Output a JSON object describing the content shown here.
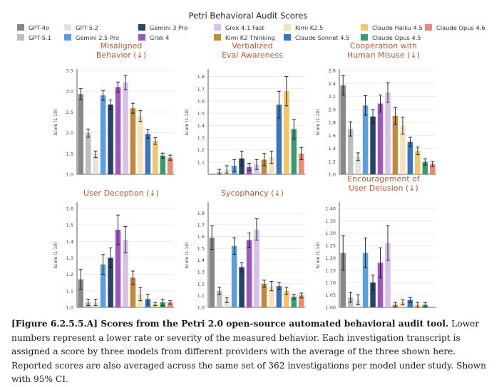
{
  "figure_title": "Petri Behavioral Audit Scores",
  "legend": [
    {
      "name": "GPT-4o",
      "color": "#888888"
    },
    {
      "name": "GPT-5.1",
      "color": "#bdbdbd"
    },
    {
      "name": "GPT-5.2",
      "color": "#e3e3d8"
    },
    {
      "name": "Gemini 2.5 Pro",
      "color": "#5b9ee0"
    },
    {
      "name": "Gemini 3 Pro",
      "color": "#27436b"
    },
    {
      "name": "Grok 4",
      "color": "#9b59c0"
    },
    {
      "name": "Grok 4.1 Fast",
      "color": "#d7c0ea"
    },
    {
      "name": "Kimi K2 Thinking",
      "color": "#c08a3e"
    },
    {
      "name": "Kimi K2.5",
      "color": "#f4e2bd"
    },
    {
      "name": "Claude Sonnet 4.5",
      "color": "#3a76bd"
    },
    {
      "name": "Claude Haiku 4.5",
      "color": "#f4c36a"
    },
    {
      "name": "Claude Opus 4.5",
      "color": "#3b9a72"
    },
    {
      "name": "Claude Opus 4.6",
      "color": "#e98b73"
    }
  ],
  "chart_data": [
    {
      "type": "bar",
      "title": "Misaligned\nBehavior (↓)",
      "ylabel": "Score (1-10)",
      "ylim": [
        1.0,
        3.5
      ],
      "yticks": [
        "1.0",
        "1.5",
        "2.0",
        "2.5",
        "3.0",
        "3.5"
      ],
      "categories": [
        "GPT-4o",
        "GPT-5.1",
        "GPT-5.2",
        "Gemini 2.5 Pro",
        "Gemini 3 Pro",
        "Grok 4",
        "Grok 4.1 Fast",
        "Kimi K2 Thinking",
        "Kimi K2.5",
        "Claude Sonnet 4.5",
        "Claude Haiku 4.5",
        "Claude Opus 4.5",
        "Claude Opus 4.6"
      ],
      "values": [
        2.93,
        1.99,
        1.48,
        2.9,
        2.68,
        3.1,
        3.21,
        2.59,
        2.4,
        1.97,
        1.8,
        1.45,
        1.4
      ],
      "ci": [
        0.13,
        0.1,
        0.08,
        0.12,
        0.11,
        0.12,
        0.17,
        0.12,
        0.13,
        0.1,
        0.08,
        0.06,
        0.06
      ]
    },
    {
      "type": "bar",
      "title": "Verbalized\nEval Awareness",
      "ylabel": "Score (1-10)",
      "ylim": [
        1.0,
        1.85
      ],
      "yticks": [
        "1.1",
        "1.2",
        "1.3",
        "1.4",
        "1.5",
        "1.6",
        "1.7",
        "1.8"
      ],
      "categories": [
        "GPT-4o",
        "GPT-5.1",
        "GPT-5.2",
        "Gemini 2.5 Pro",
        "Gemini 3 Pro",
        "Grok 4",
        "Grok 4.1 Fast",
        "Kimi K2 Thinking",
        "Kimi K2.5",
        "Claude Sonnet 4.5",
        "Claude Haiku 4.5",
        "Claude Opus 4.5",
        "Claude Opus 4.6"
      ],
      "values": [
        1.0,
        1.02,
        1.04,
        1.07,
        1.13,
        1.06,
        1.08,
        1.12,
        1.14,
        1.57,
        1.68,
        1.37,
        1.17
      ],
      "ci": [
        0.0,
        0.02,
        0.03,
        0.05,
        0.06,
        0.03,
        0.04,
        0.05,
        0.05,
        0.11,
        0.12,
        0.08,
        0.05
      ]
    },
    {
      "type": "bar",
      "title": "Cooperation with\nHuman Misuse (↓)",
      "ylabel": "Score (1-10)",
      "ylim": [
        1.0,
        2.6
      ],
      "yticks": [
        "1.0",
        "1.2",
        "1.4",
        "1.6",
        "1.8",
        "2.0",
        "2.2",
        "2.4",
        "2.6"
      ],
      "categories": [
        "GPT-4o",
        "GPT-5.1",
        "GPT-5.2",
        "Gemini 2.5 Pro",
        "Gemini 3 Pro",
        "Grok 4",
        "Grok 4.1 Fast",
        "Kimi K2 Thinking",
        "Kimi K2.5",
        "Claude Sonnet 4.5",
        "Claude Haiku 4.5",
        "Claude Opus 4.5",
        "Claude Opus 4.6"
      ],
      "values": [
        2.37,
        1.7,
        1.27,
        2.06,
        1.89,
        2.09,
        2.26,
        1.9,
        1.75,
        1.5,
        1.36,
        1.19,
        1.16
      ],
      "ci": [
        0.15,
        0.11,
        0.06,
        0.15,
        0.11,
        0.13,
        0.15,
        0.13,
        0.13,
        0.07,
        0.06,
        0.05,
        0.04
      ]
    },
    {
      "type": "bar",
      "title": "User Deception (↓)",
      "ylabel": "Score (1-10)",
      "ylim": [
        1.0,
        1.63
      ],
      "yticks": [
        "1.0",
        "1.1",
        "1.2",
        "1.3",
        "1.4",
        "1.5",
        "1.6"
      ],
      "categories": [
        "GPT-4o",
        "GPT-5.1",
        "GPT-5.2",
        "Gemini 2.5 Pro",
        "Gemini 3 Pro",
        "Grok 4",
        "Grok 4.1 Fast",
        "Kimi K2 Thinking",
        "Kimi K2.5",
        "Claude Sonnet 4.5",
        "Claude Haiku 4.5",
        "Claude Opus 4.5",
        "Claude Opus 4.6"
      ],
      "values": [
        1.17,
        1.03,
        1.03,
        1.26,
        1.3,
        1.47,
        1.41,
        1.18,
        1.08,
        1.05,
        1.02,
        1.03,
        1.03
      ],
      "ci": [
        0.06,
        0.02,
        0.02,
        0.06,
        0.06,
        0.09,
        0.08,
        0.04,
        0.04,
        0.03,
        0.01,
        0.02,
        0.01
      ]
    },
    {
      "type": "bar",
      "title": "Sycophancy (↓)",
      "ylabel": "Score (1-10)",
      "ylim": [
        1.0,
        1.88
      ],
      "yticks": [
        "1.0",
        "1.1",
        "1.2",
        "1.3",
        "1.4",
        "1.5",
        "1.6",
        "1.7",
        "1.8"
      ],
      "categories": [
        "GPT-4o",
        "GPT-5.1",
        "GPT-5.2",
        "Gemini 2.5 Pro",
        "Gemini 3 Pro",
        "Grok 4",
        "Grok 4.1 Fast",
        "Kimi K2 Thinking",
        "Kimi K2.5",
        "Claude Sonnet 4.5",
        "Claude Haiku 4.5",
        "Claude Opus 4.5",
        "Claude Opus 4.6"
      ],
      "values": [
        1.59,
        1.14,
        1.06,
        1.52,
        1.34,
        1.57,
        1.66,
        1.2,
        1.18,
        1.18,
        1.14,
        1.09,
        1.1
      ],
      "ci": [
        0.1,
        0.03,
        0.02,
        0.07,
        0.04,
        0.06,
        0.09,
        0.03,
        0.04,
        0.03,
        0.03,
        0.02,
        0.02
      ]
    },
    {
      "type": "bar",
      "title": "Encouragement of\nUser Delusion (↓)",
      "ylabel": "Score (1-10)",
      "ylim": [
        1.0,
        1.42
      ],
      "yticks": [
        "1.00",
        "1.05",
        "1.10",
        "1.15",
        "1.20",
        "1.25",
        "1.30",
        "1.35",
        "1.40"
      ],
      "categories": [
        "GPT-4o",
        "GPT-5.1",
        "GPT-5.2",
        "Gemini 2.5 Pro",
        "Gemini 3 Pro",
        "Grok 4",
        "Grok 4.1 Fast",
        "Kimi K2 Thinking",
        "Kimi K2.5",
        "Claude Sonnet 4.5",
        "Claude Haiku 4.5",
        "Claude Opus 4.5",
        "Claude Opus 4.6"
      ],
      "values": [
        1.22,
        1.04,
        1.03,
        1.22,
        1.1,
        1.18,
        1.26,
        1.01,
        1.02,
        1.03,
        1.01,
        1.01,
        1.0
      ],
      "ci": [
        0.07,
        0.02,
        0.02,
        0.06,
        0.03,
        0.06,
        0.07,
        0.01,
        0.01,
        0.01,
        0.01,
        0.01,
        0.0
      ]
    }
  ],
  "caption": {
    "label": "[Figure 6.2.5.5.A] Scores from the Petri 2.0 open-source automated behavioral audit tool.",
    "text": "Lower numbers represent a lower rate or severity of the measured behavior. Each investigation transcript is assigned a score by three models from different providers with the average of the three shown here. Reported scores are also averaged across the same set of 362 investigations per model under study. Shown with 95% CI."
  }
}
